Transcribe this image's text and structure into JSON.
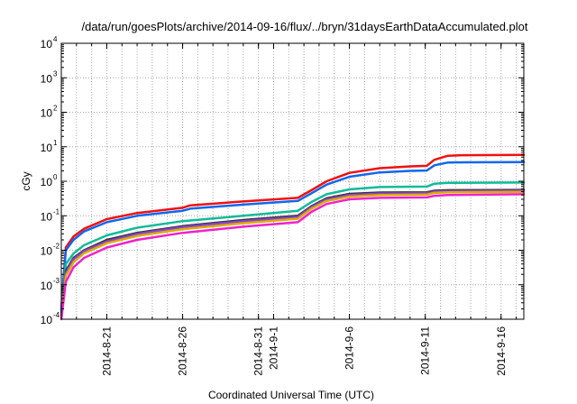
{
  "chart_data": {
    "type": "line",
    "title": "/data/run/goesPlots/archive/2014-09-16/flux/../bryn/31daysEarthDataAccumulated.plot",
    "xlabel": "Coordinated Universal Time (UTC)",
    "ylabel": "cGy",
    "y_scale": "log",
    "ylim": [
      0.0001,
      10000
    ],
    "xlim_days": [
      0,
      30.5
    ],
    "grid": true,
    "y_ticks": [
      {
        "value": 0.0001,
        "base": "10",
        "exp": "-4"
      },
      {
        "value": 0.001,
        "base": "10",
        "exp": "-3"
      },
      {
        "value": 0.01,
        "base": "10",
        "exp": "-2"
      },
      {
        "value": 0.1,
        "base": "10",
        "exp": "-1"
      },
      {
        "value": 1,
        "base": "10",
        "exp": "0"
      },
      {
        "value": 10,
        "base": "10",
        "exp": "1"
      },
      {
        "value": 100,
        "base": "10",
        "exp": "2"
      },
      {
        "value": 1000,
        "base": "10",
        "exp": "3"
      },
      {
        "value": 10000,
        "base": "10",
        "exp": "4"
      }
    ],
    "x_ticks": [
      {
        "day": 3,
        "label": "2014-8-21"
      },
      {
        "day": 8,
        "label": "2014-8-26"
      },
      {
        "day": 13,
        "label": "2014-8-31"
      },
      {
        "day": 14,
        "label": "2014-9-1"
      },
      {
        "day": 19,
        "label": "2014-9-6"
      },
      {
        "day": 24,
        "label": "2014-9-11"
      },
      {
        "day": 29,
        "label": "2014-9-16"
      }
    ],
    "series": [
      {
        "color": "#ee1111",
        "x": [
          0,
          0.3,
          0.8,
          1.5,
          3,
          5,
          8,
          8.5,
          12,
          15.6,
          16.5,
          17.5,
          19,
          21,
          23,
          24.1,
          24.6,
          25.5,
          26.5,
          30.5
        ],
        "values": [
          0.0002,
          0.012,
          0.025,
          0.042,
          0.08,
          0.12,
          0.17,
          0.2,
          0.26,
          0.33,
          0.55,
          1.0,
          1.75,
          2.4,
          2.7,
          2.8,
          4.2,
          5.5,
          5.7,
          5.8
        ]
      },
      {
        "color": "#1166ee",
        "x": [
          0,
          0.3,
          0.8,
          1.5,
          3,
          5,
          8,
          8.5,
          12,
          15.6,
          16.5,
          17.5,
          19,
          21,
          23,
          24.1,
          24.6,
          25.5,
          26.5,
          30.5
        ],
        "values": [
          0.00018,
          0.01,
          0.02,
          0.035,
          0.065,
          0.1,
          0.14,
          0.16,
          0.21,
          0.27,
          0.45,
          0.8,
          1.35,
          1.8,
          2.0,
          2.05,
          2.9,
          3.5,
          3.55,
          3.6
        ]
      },
      {
        "color": "#11bb99",
        "x": [
          0,
          0.3,
          0.8,
          1.5,
          3,
          5,
          8,
          12,
          15.6,
          16.5,
          17.5,
          19,
          21,
          24.1,
          24.6,
          25.5,
          30.5
        ],
        "values": [
          0.00015,
          0.004,
          0.008,
          0.014,
          0.027,
          0.045,
          0.07,
          0.1,
          0.14,
          0.25,
          0.42,
          0.58,
          0.68,
          0.7,
          0.85,
          0.9,
          0.92
        ]
      },
      {
        "color": "#333333",
        "x": [
          0,
          0.3,
          0.8,
          1.5,
          3,
          5,
          8,
          12,
          15.6,
          16.5,
          17.5,
          19,
          21,
          24.1,
          24.6,
          25.5,
          30.5
        ],
        "values": [
          0.00013,
          0.0025,
          0.006,
          0.01,
          0.02,
          0.032,
          0.05,
          0.075,
          0.1,
          0.19,
          0.32,
          0.43,
          0.47,
          0.48,
          0.53,
          0.55,
          0.56
        ]
      },
      {
        "color": "#8844cc",
        "x": [
          0,
          0.3,
          0.8,
          1.5,
          3,
          5,
          8,
          12,
          15.6,
          16.5,
          17.5,
          19,
          21,
          24.1,
          24.6,
          25.5,
          30.5
        ],
        "values": [
          0.00012,
          0.0022,
          0.0055,
          0.0095,
          0.018,
          0.03,
          0.047,
          0.07,
          0.093,
          0.18,
          0.3,
          0.4,
          0.44,
          0.45,
          0.5,
          0.52,
          0.53
        ]
      },
      {
        "color": "#ddaa00",
        "x": [
          0,
          0.3,
          0.8,
          1.5,
          3,
          5,
          8,
          12,
          15.6,
          16.5,
          17.5,
          19,
          21,
          24.1,
          24.6,
          25.5,
          30.5
        ],
        "values": [
          0.00011,
          0.0018,
          0.0045,
          0.0082,
          0.016,
          0.026,
          0.041,
          0.061,
          0.082,
          0.16,
          0.27,
          0.36,
          0.4,
          0.41,
          0.46,
          0.48,
          0.49
        ]
      },
      {
        "color": "#ee22cc",
        "x": [
          0,
          0.3,
          0.8,
          1.5,
          3,
          5,
          8,
          12,
          15.6,
          16.5,
          17.5,
          19,
          21,
          24.1,
          24.6,
          25.5,
          30.5
        ],
        "values": [
          0.0001,
          0.0012,
          0.0032,
          0.006,
          0.012,
          0.02,
          0.032,
          0.048,
          0.065,
          0.13,
          0.22,
          0.3,
          0.33,
          0.34,
          0.38,
          0.4,
          0.42
        ]
      }
    ]
  }
}
